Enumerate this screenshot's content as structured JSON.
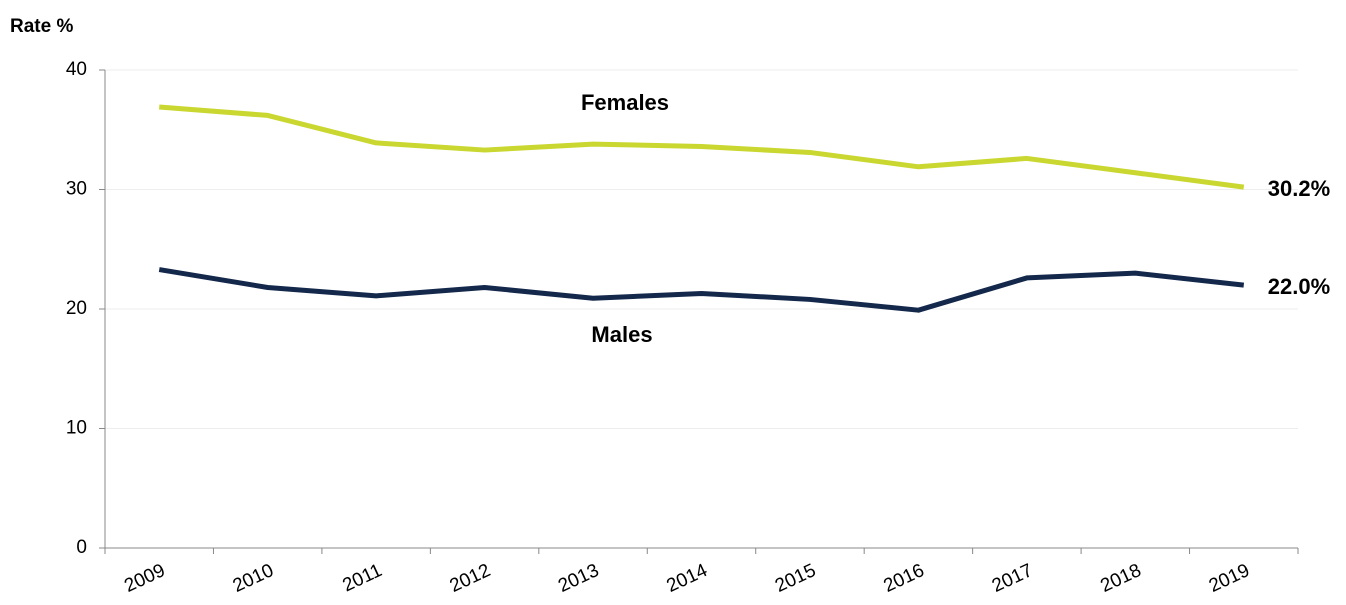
{
  "chart_data": {
    "type": "line",
    "y_label": "Rate %",
    "categories": [
      "2009",
      "2010",
      "2011",
      "2012",
      "2013",
      "2014",
      "2015",
      "2016",
      "2017",
      "2018",
      "2019"
    ],
    "series": [
      {
        "name": "Females",
        "color": "#c9d730",
        "values": [
          36.9,
          36.2,
          33.9,
          33.3,
          33.8,
          33.6,
          33.1,
          31.9,
          32.6,
          31.4,
          30.2
        ],
        "value_labels": [
          null,
          null,
          null,
          null,
          null,
          null,
          null,
          null,
          null,
          null,
          "30.2%"
        ]
      },
      {
        "name": "Males",
        "color": "#14284b",
        "values": [
          23.3,
          21.8,
          21.1,
          21.8,
          20.9,
          21.3,
          20.8,
          19.9,
          22.6,
          23.0,
          22.0
        ],
        "value_labels": [
          null,
          null,
          null,
          null,
          null,
          null,
          null,
          null,
          null,
          null,
          "22.0%"
        ]
      }
    ],
    "ylim": [
      0,
      40
    ],
    "yticks": [
      0,
      10,
      20,
      30,
      40
    ],
    "grid": true
  }
}
